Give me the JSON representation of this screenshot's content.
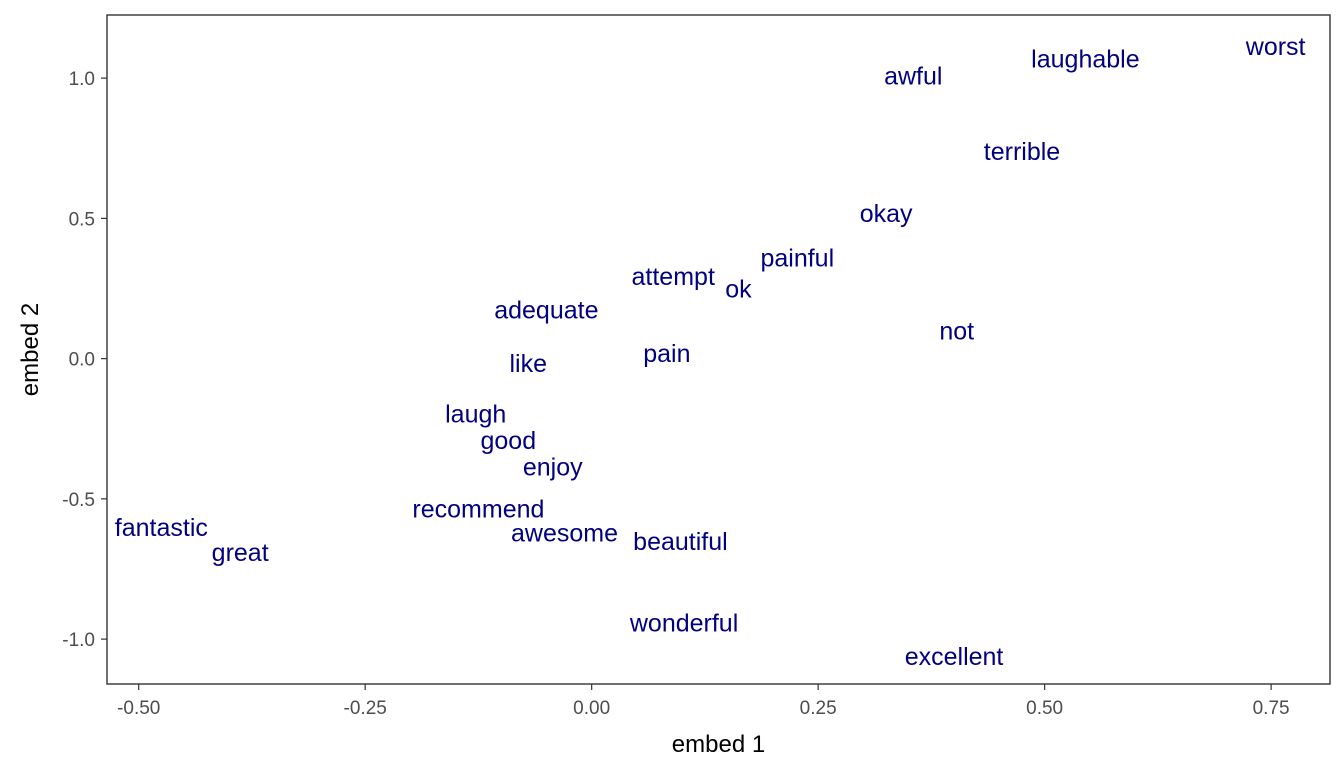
{
  "chart_data": {
    "type": "scatter",
    "title": "",
    "xlabel": "embed 1",
    "ylabel": "embed 2",
    "xlim": [
      -0.535,
      0.815
    ],
    "ylim": [
      -1.16,
      1.225
    ],
    "x_ticks": [
      -0.5,
      -0.25,
      0.0,
      0.25,
      0.5,
      0.75
    ],
    "x_tick_labels": [
      "-0.50",
      "-0.25",
      "0.00",
      "0.25",
      "0.50",
      "0.75"
    ],
    "y_ticks": [
      -1.0,
      -0.5,
      0.0,
      0.5,
      1.0
    ],
    "y_tick_labels": [
      "-1.0",
      "-0.5",
      "0.0",
      "0.5",
      "1.0"
    ],
    "grid": false,
    "label_color": "#000080",
    "points": [
      {
        "label": "worst",
        "x": 0.755,
        "y": 1.115
      },
      {
        "label": "laughable",
        "x": 0.545,
        "y": 1.07
      },
      {
        "label": "awful",
        "x": 0.355,
        "y": 1.01
      },
      {
        "label": "terrible",
        "x": 0.475,
        "y": 0.74
      },
      {
        "label": "okay",
        "x": 0.325,
        "y": 0.52
      },
      {
        "label": "painful",
        "x": 0.227,
        "y": 0.36
      },
      {
        "label": "attempt",
        "x": 0.09,
        "y": 0.295
      },
      {
        "label": "ok",
        "x": 0.162,
        "y": 0.25
      },
      {
        "label": "adequate",
        "x": -0.05,
        "y": 0.175
      },
      {
        "label": "not",
        "x": 0.403,
        "y": 0.1
      },
      {
        "label": "pain",
        "x": 0.083,
        "y": 0.02
      },
      {
        "label": "like",
        "x": -0.07,
        "y": -0.015
      },
      {
        "label": "laugh",
        "x": -0.128,
        "y": -0.195
      },
      {
        "label": "good",
        "x": -0.092,
        "y": -0.29
      },
      {
        "label": "enjoy",
        "x": -0.043,
        "y": -0.385
      },
      {
        "label": "recommend",
        "x": -0.125,
        "y": -0.535
      },
      {
        "label": "fantastic",
        "x": -0.475,
        "y": -0.6
      },
      {
        "label": "awesome",
        "x": -0.03,
        "y": -0.62
      },
      {
        "label": "beautiful",
        "x": 0.098,
        "y": -0.65
      },
      {
        "label": "great",
        "x": -0.388,
        "y": -0.69
      },
      {
        "label": "wonderful",
        "x": 0.102,
        "y": -0.94
      },
      {
        "label": "excellent",
        "x": 0.4,
        "y": -1.06
      }
    ]
  }
}
